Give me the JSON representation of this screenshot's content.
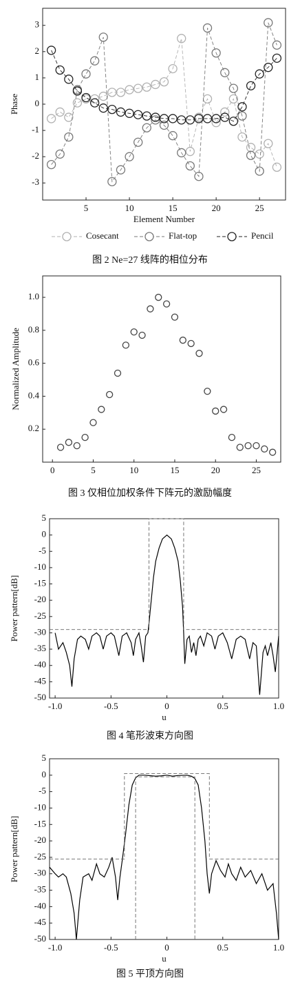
{
  "chart_data": [
    {
      "type": "line",
      "caption": "图 2 Ne=27 线阵的相位分布",
      "x_label": "Element Number",
      "y_label": "Phase",
      "x": [
        1,
        2,
        3,
        4,
        5,
        6,
        7,
        8,
        9,
        10,
        11,
        12,
        13,
        14,
        15,
        16,
        17,
        18,
        19,
        20,
        21,
        22,
        23,
        24,
        25,
        26,
        27
      ],
      "xlim": [
        0,
        28
      ],
      "xticks": [
        5,
        10,
        15,
        20,
        25
      ],
      "ylim": [
        -3.65,
        3.65
      ],
      "yticks": [
        -3,
        -2,
        -1,
        0,
        1,
        2,
        3
      ],
      "legend": "below",
      "series": [
        {
          "name": "Cosecant",
          "color": "#b0b0b0",
          "line_style": "dashed",
          "marker": "circle",
          "values": [
            -0.55,
            -0.3,
            -0.5,
            0.05,
            0.2,
            0.2,
            0.3,
            0.45,
            0.45,
            0.55,
            0.6,
            0.65,
            0.75,
            0.85,
            1.35,
            2.5,
            -1.8,
            -0.5,
            0.2,
            -0.7,
            -0.3,
            0.2,
            -1.25,
            -1.65,
            -1.9,
            -1.5,
            -2.4
          ]
        },
        {
          "name": "Flat-top",
          "color": "#777777",
          "line_style": "dashed",
          "marker": "circle",
          "values": [
            -2.3,
            -1.9,
            -1.25,
            0.55,
            1.15,
            1.65,
            2.55,
            -2.95,
            -2.5,
            -2.0,
            -1.45,
            -0.9,
            -0.6,
            -0.8,
            -1.2,
            -1.85,
            -2.35,
            -2.75,
            2.9,
            1.95,
            1.2,
            0.6,
            -0.45,
            -1.95,
            -2.55,
            3.1,
            2.25
          ]
        },
        {
          "name": "Pencil",
          "color": "#222222",
          "line_style": "dashed",
          "marker": "circle",
          "values": [
            2.05,
            1.3,
            0.95,
            0.5,
            0.25,
            0.05,
            -0.15,
            -0.2,
            -0.3,
            -0.35,
            -0.4,
            -0.45,
            -0.5,
            -0.55,
            -0.55,
            -0.6,
            -0.6,
            -0.55,
            -0.55,
            -0.55,
            -0.5,
            -0.65,
            -0.1,
            0.7,
            1.15,
            1.4,
            1.75
          ]
        }
      ]
    },
    {
      "type": "scatter",
      "caption": "图 3 仅相位加权条件下阵元的激励幅度",
      "y_label": "Normalized Amplitude",
      "x": [
        1,
        2,
        3,
        4,
        5,
        6,
        7,
        8,
        9,
        10,
        11,
        12,
        13,
        14,
        15,
        16,
        17,
        18,
        19,
        20,
        21,
        22,
        23,
        24,
        25,
        26,
        27
      ],
      "xlim": [
        -1.2,
        28
      ],
      "xticks": [
        0,
        5,
        10,
        15,
        20,
        25
      ],
      "ylim": [
        0,
        1.13
      ],
      "yticks": [
        0.2,
        0.4,
        0.6,
        0.8,
        {
          "value": 1,
          "label": "1.0"
        }
      ],
      "series": [
        {
          "color": "#444444",
          "line_style": "none",
          "marker": "circle",
          "values": [
            0.09,
            0.12,
            0.1,
            0.15,
            0.24,
            0.32,
            0.41,
            0.54,
            0.71,
            0.79,
            0.77,
            0.93,
            1.0,
            0.96,
            0.88,
            0.74,
            0.72,
            0.66,
            0.43,
            0.31,
            0.32,
            0.15,
            0.09,
            0.1,
            0.1,
            0.08,
            0.06
          ]
        }
      ]
    },
    {
      "type": "line",
      "caption": "图 4 笔形波束方向图",
      "x_label": "u",
      "y_label": "Power pattern[dB]",
      "xlim": [
        -1.05,
        1.0
      ],
      "xticks": [
        {
          "value": -1,
          "label": "-1.0"
        },
        -0.5,
        0,
        0.5,
        {
          "value": 1,
          "label": "1.0"
        }
      ],
      "ylim": [
        -50,
        5
      ],
      "yticks": [
        5,
        0,
        -5,
        -10,
        -15,
        -20,
        -25,
        -30,
        -35,
        -40,
        -45,
        -50
      ],
      "series": [
        {
          "color": "#000000",
          "line_style": "solid",
          "marker": "none",
          "x": [
            -1.0,
            -0.97,
            -0.93,
            -0.9,
            -0.87,
            -0.85,
            -0.83,
            -0.8,
            -0.77,
            -0.73,
            -0.7,
            -0.67,
            -0.63,
            -0.6,
            -0.57,
            -0.54,
            -0.5,
            -0.47,
            -0.43,
            -0.4,
            -0.36,
            -0.32,
            -0.3,
            -0.28,
            -0.25,
            -0.23,
            -0.21,
            -0.19,
            -0.17,
            -0.16,
            -0.14,
            -0.12,
            -0.1,
            -0.07,
            -0.04,
            0,
            0.04,
            0.07,
            0.1,
            0.12,
            0.14,
            0.15,
            0.16,
            0.18,
            0.2,
            0.22,
            0.24,
            0.26,
            0.28,
            0.3,
            0.33,
            0.36,
            0.4,
            0.43,
            0.46,
            0.5,
            0.54,
            0.58,
            0.62,
            0.66,
            0.7,
            0.74,
            0.77,
            0.8,
            0.83,
            0.86,
            0.88,
            0.9,
            0.93,
            0.95,
            0.97,
            1.0
          ],
          "values": [
            -30,
            -35,
            -33,
            -36,
            -40,
            -46.5,
            -38,
            -32,
            -31,
            -32,
            -35,
            -31,
            -30,
            -31,
            -35,
            -31,
            -30,
            -31,
            -37,
            -31,
            -30,
            -33,
            -37,
            -32,
            -30,
            -34,
            -39,
            -31,
            -30,
            -27,
            -20,
            -13,
            -8,
            -4,
            -1.2,
            0,
            -1.2,
            -4,
            -8,
            -14,
            -22,
            -30,
            -39.5,
            -32,
            -31,
            -36,
            -33,
            -37,
            -32,
            -31,
            -34,
            -30,
            -31,
            -35,
            -31,
            -30,
            -33,
            -38,
            -32,
            -31,
            -32,
            -38,
            -33,
            -34,
            -49,
            -36,
            -34,
            -37,
            -33,
            -37,
            -42,
            -31
          ]
        },
        {
          "color": "#666666",
          "line_style": "dashed",
          "marker": "none",
          "x": [
            -1.05,
            -0.16,
            -0.16,
            0.15,
            0.15,
            1.0
          ],
          "values": [
            -29,
            -29,
            5,
            5,
            -29,
            -29
          ]
        }
      ]
    },
    {
      "type": "line",
      "caption": "图 5 平顶方向图",
      "x_label": "u",
      "y_label": "Power pattern[dB]",
      "xlim": [
        -1.05,
        1.0
      ],
      "xticks": [
        {
          "value": -1,
          "label": "-1.0"
        },
        -0.5,
        0,
        0.5,
        {
          "value": 1,
          "label": "1.0"
        }
      ],
      "ylim": [
        -50,
        5
      ],
      "yticks": [
        5,
        0,
        -5,
        -10,
        -15,
        -20,
        -25,
        -30,
        -35,
        -40,
        -45,
        -50
      ],
      "series": [
        {
          "color": "#000000",
          "line_style": "solid",
          "marker": "none",
          "x": [
            -1.05,
            -1.0,
            -0.97,
            -0.93,
            -0.9,
            -0.86,
            -0.83,
            -0.81,
            -0.78,
            -0.75,
            -0.7,
            -0.67,
            -0.63,
            -0.6,
            -0.56,
            -0.52,
            -0.49,
            -0.46,
            -0.44,
            -0.42,
            -0.4,
            -0.37,
            -0.34,
            -0.31,
            -0.28,
            -0.25,
            -0.2,
            -0.1,
            -0.05,
            0,
            0.05,
            0.1,
            0.18,
            0.22,
            0.25,
            0.28,
            0.31,
            0.34,
            0.36,
            0.38,
            0.4,
            0.44,
            0.48,
            0.52,
            0.55,
            0.58,
            0.62,
            0.66,
            0.7,
            0.75,
            0.8,
            0.85,
            0.9,
            0.95,
            0.98,
            1.0
          ],
          "values": [
            -28,
            -30,
            -31,
            -30,
            -31,
            -36,
            -42,
            -50,
            -38,
            -31,
            -30,
            -32,
            -27,
            -30,
            -31,
            -28,
            -25,
            -31,
            -38,
            -31,
            -26,
            -18,
            -9,
            -3,
            -0.8,
            0,
            0,
            -0.3,
            -0.2,
            0,
            -0.3,
            -0.1,
            0,
            -0.3,
            -1,
            -3,
            -10,
            -20,
            -30,
            -36,
            -30,
            -26,
            -29,
            -31,
            -27,
            -30,
            -32,
            -28,
            -31,
            -29,
            -33,
            -30,
            -35,
            -33,
            -42,
            -50
          ]
        },
        {
          "color": "#666666",
          "line_style": "dashed",
          "marker": "none",
          "x": [
            -1.05,
            -0.38,
            -0.38,
            0.38,
            0.38,
            1.0
          ],
          "values": [
            -25.5,
            -25.5,
            0.5,
            0.5,
            -25.5,
            -25.5
          ]
        },
        {
          "color": "#666666",
          "line_style": "dashed",
          "marker": "none",
          "x": [
            -0.28,
            -0.28,
            0.25,
            0.25
          ],
          "values": [
            -50,
            -0.5,
            -0.5,
            -50
          ]
        }
      ]
    }
  ]
}
